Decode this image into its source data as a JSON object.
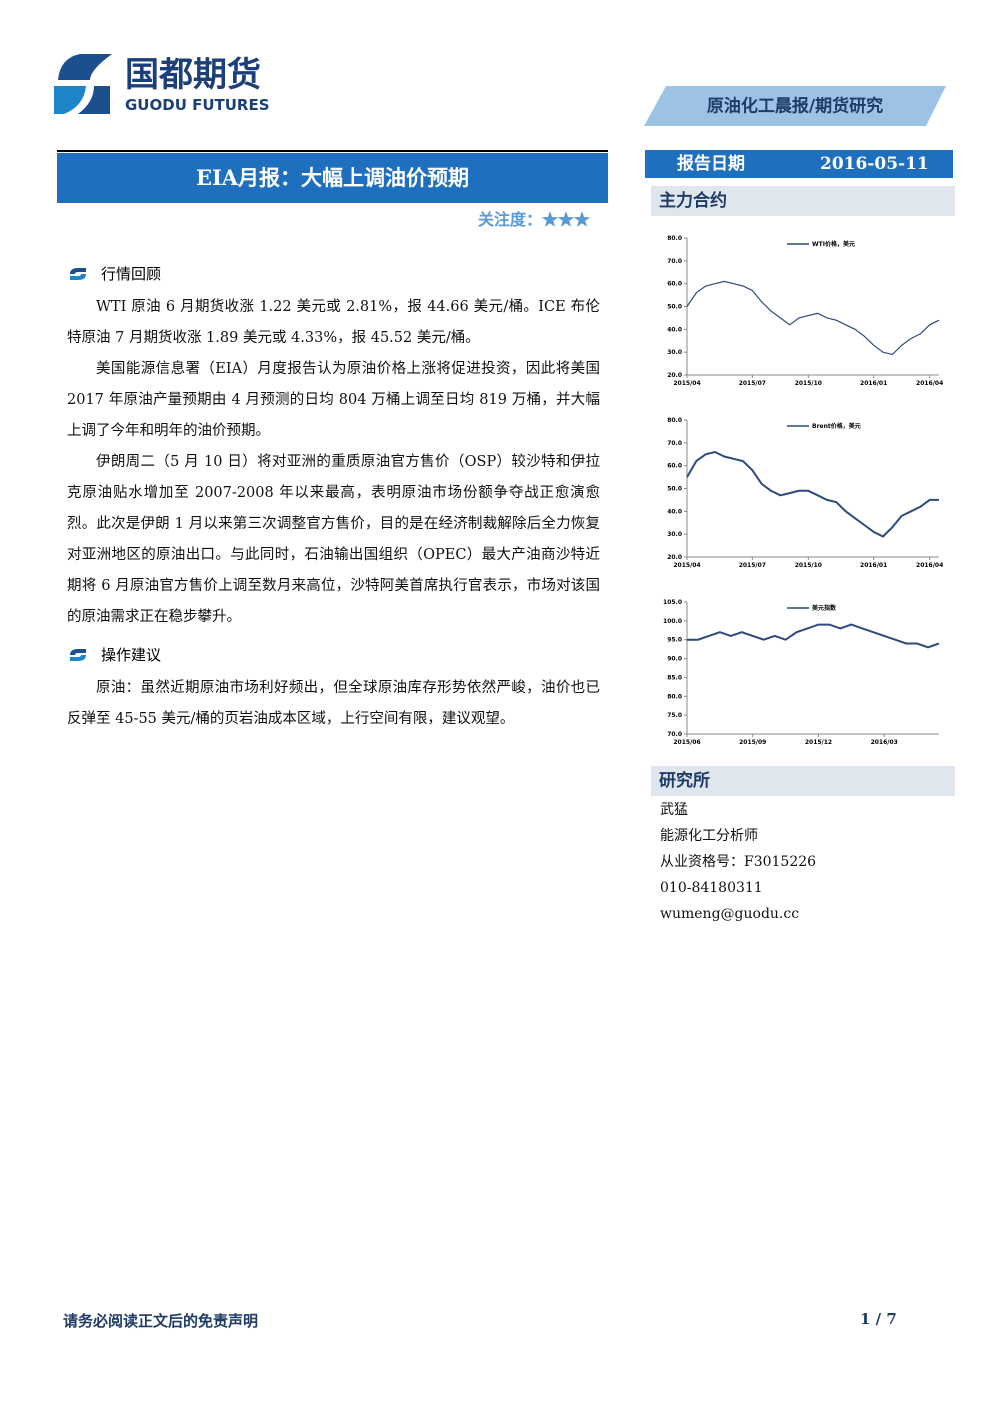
{
  "header": {
    "logo_cn": "国都期货",
    "logo_en": "GUODU FUTURES",
    "banner": "原油化工晨报/期货研究"
  },
  "report": {
    "title": "EIA月报：大幅上调油价预期",
    "attention": "关注度：★★★",
    "date_label": "报告日期",
    "date": "2016-05-11"
  },
  "sections": [
    {
      "heading": "行情回顾",
      "paragraphs": [
        "WTI 原油 6 月期货收涨 1.22 美元或 2.81%，报 44.66 美元/桶。ICE 布伦特原油 7 月期货收涨 1.89 美元或 4.33%，报 45.52 美元/桶。",
        "美国能源信息署（EIA）月度报告认为原油价格上涨将促进投资，因此将美国 2017 年原油产量预期由 4 月预测的日均 804 万桶上调至日均 819 万桶，并大幅上调了今年和明年的油价预期。",
        "伊朗周二（5 月 10 日）将对亚洲的重质原油官方售价（OSP）较沙特和伊拉克原油贴水增加至 2007-2008 年以来最高，表明原油市场份额争夺战正愈演愈烈。此次是伊朗 1 月以来第三次调整官方售价，目的是在经济制裁解除后全力恢复对亚洲地区的原油出口。与此同时，石油输出国组织（OPEC）最大产油商沙特近期将 6 月原油官方售价上调至数月来高位，沙特阿美首席执行官表示，市场对该国的原油需求正在稳步攀升。"
      ]
    },
    {
      "heading": "操作建议",
      "paragraphs": [
        "原油：虽然近期原油市场利好频出，但全球原油库存形势依然严峻，油价也已反弹至 45-55 美元/桶的页岩油成本区域，上行空间有限，建议观望。"
      ]
    }
  ],
  "sidebar": {
    "contracts_heading": "主力合约",
    "institute_heading": "研究所",
    "contacts": [
      "武猛",
      "能源化工分析师",
      "从业资格号：F3015226",
      "010-84180311",
      "wumeng@guodu.cc"
    ]
  },
  "footer": {
    "disclaimer": "请务必阅读正文后的免责声明",
    "page": "1 / 7"
  },
  "chart_data": [
    {
      "type": "line",
      "categories": [
        "2015/04",
        null,
        null,
        null,
        null,
        null,
        null,
        "2015/07",
        null,
        null,
        null,
        null,
        null,
        "2015/10",
        null,
        null,
        null,
        null,
        null,
        null,
        "2016/01",
        null,
        null,
        null,
        null,
        null,
        "2016/04",
        null
      ],
      "series": [
        {
          "name": "WTI价格，美元",
          "color": "#2e4a7d",
          "values": [
            50,
            56,
            59,
            60,
            61,
            60,
            59,
            57,
            52,
            48,
            45,
            42,
            45,
            46,
            47,
            45,
            44,
            42,
            40,
            37,
            33,
            30,
            29,
            33,
            36,
            38,
            42,
            44
          ]
        }
      ],
      "ylim": [
        20,
        80
      ],
      "yticks": [
        {
          "value": 20,
          "label": "20.0"
        },
        {
          "value": 30,
          "label": "30.0"
        },
        {
          "value": 40,
          "label": "40.0"
        },
        {
          "value": 50,
          "label": "50.0"
        },
        {
          "value": 60,
          "label": "60.0"
        },
        {
          "value": 70,
          "label": "70.0"
        },
        {
          "value": 80,
          "label": "80.0"
        }
      ]
    },
    {
      "type": "line",
      "categories": [
        "2015/04",
        null,
        null,
        null,
        null,
        null,
        null,
        "2015/07",
        null,
        null,
        null,
        null,
        null,
        "2015/10",
        null,
        null,
        null,
        null,
        null,
        null,
        "2016/01",
        null,
        null,
        null,
        null,
        null,
        "2016/04",
        null
      ],
      "series": [
        {
          "name": "Brent价格，美元",
          "color": "#2e4a7d",
          "values": [
            55,
            62,
            65,
            66,
            64,
            63,
            62,
            58,
            52,
            49,
            47,
            48,
            49,
            49,
            47,
            45,
            44,
            40,
            37,
            34,
            31,
            29,
            33,
            38,
            40,
            42,
            45,
            45
          ]
        }
      ],
      "ylim": [
        20,
        80
      ],
      "yticks": [
        {
          "value": 20,
          "label": "20.0"
        },
        {
          "value": 30,
          "label": "30.0"
        },
        {
          "value": 40,
          "label": "40.0"
        },
        {
          "value": 50,
          "label": "50.0"
        },
        {
          "value": 60,
          "label": "60.0"
        },
        {
          "value": 70,
          "label": "70.0"
        },
        {
          "value": 80,
          "label": "80.0"
        }
      ]
    },
    {
      "type": "line",
      "categories": [
        "2015/06",
        null,
        null,
        null,
        null,
        null,
        "2015/09",
        null,
        null,
        null,
        null,
        null,
        "2015/12",
        null,
        null,
        null,
        null,
        null,
        "2016/03",
        null,
        null,
        null,
        null,
        null
      ],
      "series": [
        {
          "name": "美元指数",
          "color": "#2e4a7d",
          "values": [
            95,
            95,
            96,
            97,
            96,
            97,
            96,
            95,
            96,
            95,
            97,
            98,
            99,
            99,
            98,
            99,
            98,
            97,
            96,
            95,
            94,
            94,
            93,
            94
          ]
        }
      ],
      "ylim": [
        70,
        105
      ],
      "yticks": [
        {
          "value": 70,
          "label": "70.0"
        },
        {
          "value": 75,
          "label": "75.0"
        },
        {
          "value": 80,
          "label": "80.0"
        },
        {
          "value": 85,
          "label": "85.0"
        },
        {
          "value": 90,
          "label": "90.0"
        },
        {
          "value": 95,
          "label": "95.0"
        },
        {
          "value": 100,
          "label": "100.0"
        },
        {
          "value": 105,
          "label": "105.0"
        }
      ]
    }
  ]
}
